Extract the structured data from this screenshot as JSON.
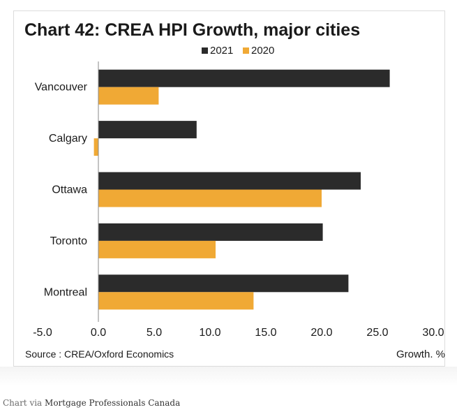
{
  "chart_data": {
    "type": "bar",
    "orientation": "horizontal",
    "title": "Chart 42: CREA HPI Growth, major cities",
    "categories": [
      "Vancouver",
      "Calgary",
      "Ottawa",
      "Toronto",
      "Montreal"
    ],
    "series": [
      {
        "name": "2021",
        "color": "#2b2b2b",
        "values": [
          26.1,
          8.8,
          23.5,
          20.1,
          22.4
        ]
      },
      {
        "name": "2020",
        "color": "#f0a935",
        "values": [
          5.4,
          -0.4,
          20.0,
          10.5,
          13.9
        ]
      }
    ],
    "xlim": [
      -5,
      30
    ],
    "xticks": [
      "-5.0",
      "0.0",
      "5.0",
      "10.0",
      "15.0",
      "20.0",
      "25.0",
      "30.0"
    ],
    "xlabel": "Growth. %",
    "source": "Source : CREA/Oxford Economics",
    "legend_position": "top-center",
    "grid": false
  },
  "caption": {
    "prefix": "Chart via",
    "link_text": "Mortgage Professionals Canada"
  }
}
